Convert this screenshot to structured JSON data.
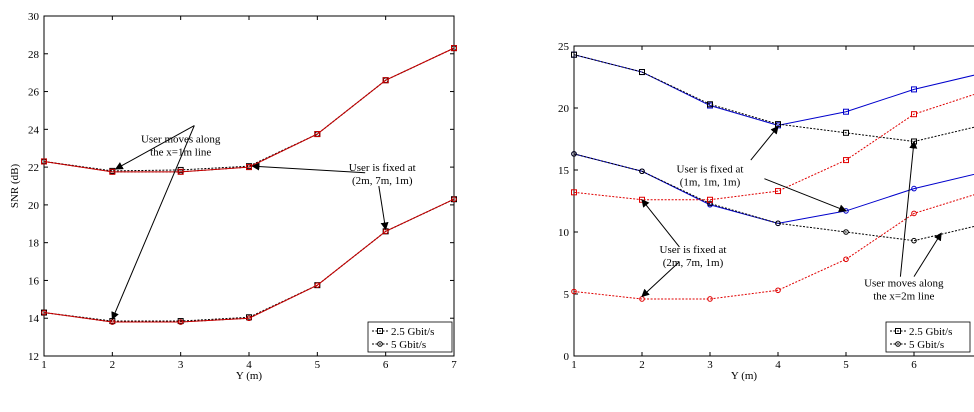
{
  "chart_data": [
    {
      "type": "line",
      "xlabel": "Y (m)",
      "ylabel": "SNR (dB)",
      "xlim": [
        1,
        7
      ],
      "ylim": [
        12,
        30
      ],
      "xticks": [
        "1",
        "2",
        "3",
        "4",
        "5",
        "6",
        "7"
      ],
      "yticks": [
        "12",
        "14",
        "16",
        "18",
        "20",
        "22",
        "24",
        "26",
        "28",
        "30"
      ],
      "grid": false,
      "legend": {
        "position": "bottom-right",
        "entries": [
          "2.5 Gbit/s",
          "5 Gbit/s"
        ]
      },
      "series": [
        {
          "legend": "2.5 Gbit/s",
          "marker": "square",
          "color": "#000000",
          "dash": true,
          "x": [
            1,
            2,
            3,
            4,
            5,
            6,
            7
          ],
          "y": [
            22.3,
            21.8,
            21.85,
            22.05,
            23.75,
            26.6,
            28.3
          ]
        },
        {
          "legend": "5 Gbit/s",
          "marker": "circle",
          "color": "#000000",
          "dash": true,
          "x": [
            1,
            2,
            3,
            4,
            5,
            6,
            7
          ],
          "y": [
            22.3,
            21.75,
            21.75,
            22.0,
            23.75,
            26.6,
            28.3
          ]
        },
        {
          "legend": "2.5 Gbit/s",
          "marker": "square",
          "color": "#cc0000",
          "dash": false,
          "x": [
            1,
            2,
            3,
            4,
            5,
            6,
            7
          ],
          "y": [
            22.3,
            21.75,
            21.75,
            22.0,
            23.75,
            26.6,
            28.3
          ]
        },
        {
          "legend": "2.5 Gbit/s",
          "marker": "square",
          "color": "#000000",
          "dash": true,
          "x": [
            1,
            2,
            3,
            4,
            5,
            6,
            7
          ],
          "y": [
            14.3,
            13.85,
            13.85,
            14.05,
            15.75,
            18.6,
            20.3
          ]
        },
        {
          "legend": "5 Gbit/s",
          "marker": "circle",
          "color": "#000000",
          "dash": true,
          "x": [
            1,
            2,
            3,
            4,
            5,
            6,
            7
          ],
          "y": [
            14.3,
            13.8,
            13.8,
            14.0,
            15.75,
            18.6,
            20.3
          ]
        },
        {
          "legend": "5 Gbit/s",
          "marker": "circle",
          "color": "#cc0000",
          "dash": false,
          "x": [
            1,
            2,
            3,
            4,
            5,
            6,
            7
          ],
          "y": [
            14.3,
            13.8,
            13.8,
            14.0,
            15.75,
            18.6,
            20.3
          ]
        }
      ],
      "annotations": [
        {
          "lines": [
            "User moves along",
            "the x=1m line"
          ],
          "tx": 3.0,
          "ty": 23.3,
          "arrows": [
            [
              3.2,
              24.2,
              2.05,
              21.9
            ],
            [
              3.2,
              24.2,
              2.0,
              13.95
            ]
          ]
        },
        {
          "lines": [
            "User is fixed at",
            "(2m, 7m, 1m)"
          ],
          "tx": 5.95,
          "ty": 21.8,
          "arrows": [
            [
              5.7,
              21.7,
              4.05,
              22.05
            ],
            [
              5.9,
              21.0,
              6.0,
              18.7
            ]
          ]
        }
      ]
    },
    {
      "type": "line",
      "xlabel": "Y (m)",
      "ylabel": "",
      "xlim": [
        1,
        7
      ],
      "ylim": [
        0,
        25
      ],
      "xticks": [
        "1",
        "2",
        "3",
        "4",
        "5",
        "6"
      ],
      "yticks": [
        "0",
        "5",
        "10",
        "15",
        "20",
        "25"
      ],
      "grid": false,
      "legend": {
        "position": "bottom-right",
        "entries": [
          "2.5 Gbit/s",
          "5 Gbit/s"
        ]
      },
      "series": [
        {
          "legend": "2.5 Gbit/s",
          "marker": "square",
          "color": "#0000cc",
          "dash": false,
          "x": [
            1,
            2,
            3,
            4,
            5,
            6,
            7
          ],
          "y": [
            24.3,
            22.9,
            20.2,
            18.6,
            19.7,
            21.5,
            22.8
          ]
        },
        {
          "legend": "2.5 Gbit/s",
          "marker": "square",
          "color": "#000000",
          "dash": true,
          "x": [
            1,
            2,
            3,
            4,
            5,
            6,
            7
          ],
          "y": [
            24.3,
            22.9,
            20.3,
            18.7,
            18.0,
            17.3,
            18.6
          ]
        },
        {
          "legend": "5 Gbit/s",
          "marker": "circle",
          "color": "#0000cc",
          "dash": false,
          "x": [
            1,
            2,
            3,
            4,
            5,
            6,
            7
          ],
          "y": [
            16.3,
            14.9,
            12.2,
            10.7,
            11.7,
            13.5,
            14.8
          ]
        },
        {
          "legend": "5 Gbit/s",
          "marker": "circle",
          "color": "#000000",
          "dash": true,
          "x": [
            1,
            2,
            3,
            4,
            5,
            6,
            7
          ],
          "y": [
            16.3,
            14.9,
            12.3,
            10.7,
            10.0,
            9.3,
            10.6
          ]
        },
        {
          "legend": "2.5 Gbit/s",
          "marker": "square",
          "color": "#e00000",
          "dash": true,
          "x": [
            1,
            2,
            3,
            4,
            5,
            6,
            7
          ],
          "y": [
            13.2,
            12.6,
            12.6,
            13.3,
            15.8,
            19.5,
            21.3
          ]
        },
        {
          "legend": "5 Gbit/s",
          "marker": "circle",
          "color": "#e00000",
          "dash": true,
          "x": [
            1,
            2,
            3,
            4,
            5,
            6,
            7
          ],
          "y": [
            5.2,
            4.6,
            4.6,
            5.3,
            7.8,
            11.5,
            13.2
          ]
        }
      ],
      "annotations": [
        {
          "lines": [
            "User is fixed at",
            "(1m, 1m, 1m)"
          ],
          "tx": 3.0,
          "ty": 14.8,
          "arrows": [
            [
              3.6,
              15.8,
              4.0,
              18.5
            ],
            [
              3.8,
              14.3,
              5.0,
              11.7
            ]
          ]
        },
        {
          "lines": [
            "User is fixed at",
            "(2m, 7m, 1m)"
          ],
          "tx": 2.75,
          "ty": 8.3,
          "arrows": [
            [
              2.55,
              8.8,
              2.0,
              12.6
            ],
            [
              2.55,
              7.6,
              2.0,
              4.8
            ]
          ]
        },
        {
          "lines": [
            "User moves along",
            "the x=2m line"
          ],
          "tx": 5.85,
          "ty": 5.6,
          "arrows": [
            [
              5.8,
              6.4,
              6.0,
              17.3
            ],
            [
              6.0,
              6.4,
              6.4,
              9.9
            ]
          ]
        }
      ]
    }
  ]
}
